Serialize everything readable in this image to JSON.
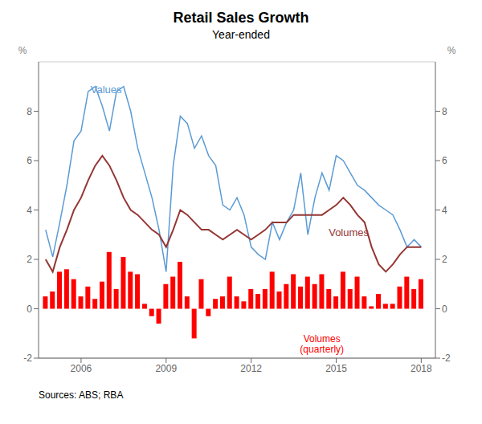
{
  "chart_data": {
    "type": "bar",
    "title": "Retail Sales Growth",
    "subtitle": "Year-ended",
    "source": "Sources: ABS; RBA",
    "ylabel": "%",
    "y2label": "%",
    "grid": true,
    "xlim": [
      2004.5,
      2018.5
    ],
    "xticks": [
      2006,
      2009,
      2012,
      2015,
      2018
    ],
    "ylim": [
      -2,
      10
    ],
    "yticks": [
      -2,
      0,
      2,
      4,
      6,
      8
    ],
    "y2lim": [
      -2,
      10
    ],
    "y2ticks": [
      -2,
      0,
      2,
      4,
      6,
      8
    ],
    "x": [
      2004.75,
      2005.0,
      2005.25,
      2005.5,
      2005.75,
      2006.0,
      2006.25,
      2006.5,
      2006.75,
      2007.0,
      2007.25,
      2007.5,
      2007.75,
      2008.0,
      2008.25,
      2008.5,
      2008.75,
      2009.0,
      2009.25,
      2009.5,
      2009.75,
      2010.0,
      2010.25,
      2010.5,
      2010.75,
      2011.0,
      2011.25,
      2011.5,
      2011.75,
      2012.0,
      2012.25,
      2012.5,
      2012.75,
      2013.0,
      2013.25,
      2013.5,
      2013.75,
      2014.0,
      2014.25,
      2014.5,
      2014.75,
      2015.0,
      2015.25,
      2015.5,
      2015.75,
      2016.0,
      2016.25,
      2016.5,
      2016.75,
      2017.0,
      2017.25,
      2017.5,
      2017.75,
      2018.0
    ],
    "series": [
      {
        "name": "Volumes (quarterly)",
        "type": "bar",
        "color": "#FF0000",
        "values": [
          0.5,
          0.7,
          1.5,
          1.6,
          1.2,
          0.5,
          0.9,
          0.4,
          1.1,
          2.3,
          0.8,
          2.1,
          1.5,
          1.4,
          0.2,
          -0.3,
          -0.6,
          1.0,
          1.3,
          1.9,
          0.5,
          -1.2,
          1.2,
          -0.3,
          0.4,
          0.5,
          1.3,
          0.5,
          0.3,
          0.8,
          0.6,
          0.8,
          1.5,
          0.7,
          1.0,
          1.4,
          0.9,
          1.3,
          1.0,
          1.4,
          0.8,
          0.5,
          1.5,
          0.8,
          1.3,
          0.5,
          0.1,
          0.6,
          0.2,
          0.2,
          0.9,
          1.3,
          0.8,
          1.2
        ]
      },
      {
        "name": "Values",
        "type": "line",
        "color": "#5B9BD5",
        "values": [
          3.2,
          2.1,
          3.5,
          5.0,
          6.8,
          7.2,
          8.8,
          9.0,
          8.2,
          7.2,
          8.8,
          9.0,
          8.0,
          6.5,
          5.5,
          4.5,
          3.2,
          1.5,
          5.8,
          7.8,
          7.5,
          6.5,
          7.0,
          6.2,
          5.8,
          4.2,
          4.0,
          4.5,
          3.8,
          2.5,
          2.2,
          2.0,
          3.5,
          2.8,
          3.5,
          4.0,
          5.5,
          3.0,
          4.5,
          5.5,
          4.8,
          6.2,
          6.0,
          5.5,
          5.0,
          4.8,
          4.5,
          4.2,
          4.0,
          3.8,
          3.2,
          2.5,
          2.8,
          2.5
        ]
      },
      {
        "name": "Volumes",
        "type": "line",
        "color": "#943634",
        "values": [
          2.0,
          1.5,
          2.5,
          3.2,
          4.0,
          4.5,
          5.2,
          5.8,
          6.2,
          5.8,
          5.2,
          4.5,
          4.0,
          3.8,
          3.5,
          3.2,
          3.0,
          2.5,
          3.2,
          4.0,
          3.8,
          3.5,
          3.2,
          3.2,
          3.0,
          2.8,
          3.0,
          3.2,
          3.0,
          2.8,
          3.0,
          3.2,
          3.5,
          3.5,
          3.5,
          3.8,
          3.8,
          3.8,
          3.8,
          3.8,
          4.0,
          4.2,
          4.5,
          4.2,
          3.8,
          3.5,
          2.5,
          1.8,
          1.5,
          1.8,
          2.2,
          2.5,
          2.5,
          2.5
        ]
      }
    ]
  }
}
